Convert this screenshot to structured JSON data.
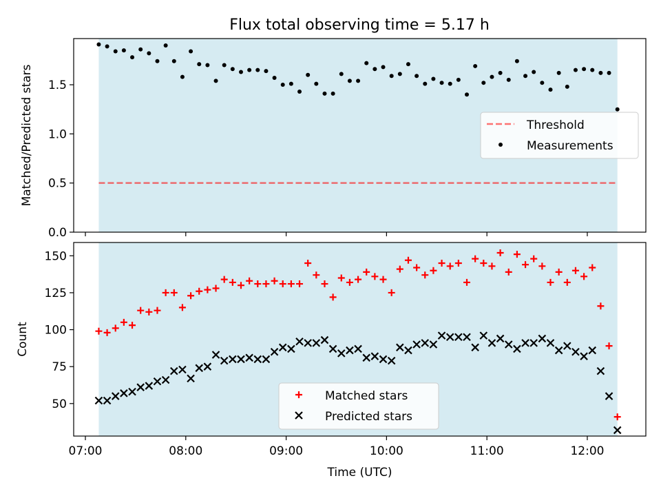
{
  "title": "Flux total observing time = 5.17 h",
  "colors": {
    "observing_band": "#add8e6",
    "threshold": "#ff0000",
    "measurement": "#000000",
    "matched": "#ff0000",
    "predicted": "#000000"
  },
  "chart_data": [
    {
      "type": "scatter",
      "panel": "top",
      "ylabel": "Matched/Predicted stars",
      "xlim": [
        "06:53",
        "12:35"
      ],
      "ylim": [
        0,
        1.97
      ],
      "yticks": [
        "0.0",
        "0.5",
        "1.0",
        "1.5"
      ],
      "xticks": [
        "07:00",
        "08:00",
        "09:00",
        "10:00",
        "11:00",
        "12:00"
      ],
      "observing_band": [
        "07:08",
        "12:18"
      ],
      "threshold": {
        "name": "Threshold",
        "value": 0.5,
        "style": "dashed"
      },
      "legend": {
        "placement": "center-right",
        "entries": [
          "Threshold",
          "Measurements"
        ]
      },
      "series": [
        {
          "name": "Measurements",
          "marker": "dot",
          "x": [
            "07:08",
            "07:13",
            "07:18",
            "07:23",
            "07:28",
            "07:33",
            "07:38",
            "07:43",
            "07:48",
            "07:53",
            "07:58",
            "08:03",
            "08:08",
            "08:13",
            "08:18",
            "08:23",
            "08:28",
            "08:33",
            "08:38",
            "08:43",
            "08:48",
            "08:53",
            "08:58",
            "09:03",
            "09:08",
            "09:13",
            "09:18",
            "09:23",
            "09:28",
            "09:33",
            "09:38",
            "09:43",
            "09:48",
            "09:53",
            "09:58",
            "10:03",
            "10:08",
            "10:13",
            "10:18",
            "10:23",
            "10:28",
            "10:33",
            "10:38",
            "10:43",
            "10:48",
            "10:53",
            "10:58",
            "11:03",
            "11:08",
            "11:13",
            "11:18",
            "11:23",
            "11:28",
            "11:33",
            "11:38",
            "11:43",
            "11:48",
            "11:53",
            "11:58",
            "12:03",
            "12:08",
            "12:13",
            "12:18"
          ],
          "y": [
            1.91,
            1.89,
            1.84,
            1.85,
            1.78,
            1.86,
            1.82,
            1.74,
            1.9,
            1.74,
            1.58,
            1.84,
            1.71,
            1.7,
            1.54,
            1.7,
            1.66,
            1.63,
            1.65,
            1.65,
            1.64,
            1.57,
            1.5,
            1.51,
            1.43,
            1.6,
            1.51,
            1.41,
            1.41,
            1.61,
            1.54,
            1.54,
            1.72,
            1.66,
            1.68,
            1.59,
            1.61,
            1.71,
            1.59,
            1.51,
            1.56,
            1.52,
            1.51,
            1.55,
            1.4,
            1.69,
            1.52,
            1.58,
            1.62,
            1.55,
            1.74,
            1.59,
            1.63,
            1.52,
            1.45,
            1.62,
            1.48,
            1.65,
            1.66,
            1.65,
            1.62,
            1.62,
            1.25
          ]
        }
      ]
    },
    {
      "type": "scatter",
      "panel": "bottom",
      "xlabel": "Time (UTC)",
      "ylabel": "Count",
      "xlim": [
        "06:53",
        "12:35"
      ],
      "ylim": [
        28,
        159
      ],
      "yticks": [
        "50",
        "75",
        "100",
        "125",
        "150"
      ],
      "xticks": [
        "07:00",
        "08:00",
        "09:00",
        "10:00",
        "11:00",
        "12:00"
      ],
      "observing_band": [
        "07:08",
        "12:18"
      ],
      "legend": {
        "placement": "bottom-center",
        "entries": [
          "Matched stars",
          "Predicted stars"
        ]
      },
      "series": [
        {
          "name": "Matched stars",
          "marker": "plus",
          "x": [
            "07:08",
            "07:13",
            "07:18",
            "07:23",
            "07:28",
            "07:33",
            "07:38",
            "07:43",
            "07:48",
            "07:53",
            "07:58",
            "08:03",
            "08:08",
            "08:13",
            "08:18",
            "08:23",
            "08:28",
            "08:33",
            "08:38",
            "08:43",
            "08:48",
            "08:53",
            "08:58",
            "09:03",
            "09:08",
            "09:13",
            "09:18",
            "09:23",
            "09:28",
            "09:33",
            "09:38",
            "09:43",
            "09:48",
            "09:53",
            "09:58",
            "10:03",
            "10:08",
            "10:13",
            "10:18",
            "10:23",
            "10:28",
            "10:33",
            "10:38",
            "10:43",
            "10:48",
            "10:53",
            "10:58",
            "11:03",
            "11:08",
            "11:13",
            "11:18",
            "11:23",
            "11:28",
            "11:33",
            "11:38",
            "11:43",
            "11:48",
            "11:53",
            "11:58",
            "12:03",
            "12:08",
            "12:13",
            "12:18"
          ],
          "y": [
            99,
            98,
            101,
            105,
            103,
            113,
            112,
            113,
            125,
            125,
            115,
            123,
            126,
            127,
            128,
            134,
            132,
            130,
            133,
            131,
            131,
            133,
            131,
            131,
            131,
            145,
            137,
            131,
            122,
            135,
            132,
            134,
            139,
            136,
            134,
            125,
            141,
            147,
            142,
            137,
            140,
            145,
            143,
            145,
            132,
            148,
            145,
            143,
            152,
            139,
            151,
            144,
            148,
            143,
            132,
            139,
            132,
            140,
            136,
            142,
            116,
            89,
            41
          ]
        },
        {
          "name": "Predicted stars",
          "marker": "x",
          "x": [
            "07:08",
            "07:13",
            "07:18",
            "07:23",
            "07:28",
            "07:33",
            "07:38",
            "07:43",
            "07:48",
            "07:53",
            "07:58",
            "08:03",
            "08:08",
            "08:13",
            "08:18",
            "08:23",
            "08:28",
            "08:33",
            "08:38",
            "08:43",
            "08:48",
            "08:53",
            "08:58",
            "09:03",
            "09:08",
            "09:13",
            "09:18",
            "09:23",
            "09:28",
            "09:33",
            "09:38",
            "09:43",
            "09:48",
            "09:53",
            "09:58",
            "10:03",
            "10:08",
            "10:13",
            "10:18",
            "10:23",
            "10:28",
            "10:33",
            "10:38",
            "10:43",
            "10:48",
            "10:53",
            "10:58",
            "11:03",
            "11:08",
            "11:13",
            "11:18",
            "11:23",
            "11:28",
            "11:33",
            "11:38",
            "11:43",
            "11:48",
            "11:53",
            "11:58",
            "12:03",
            "12:08",
            "12:13",
            "12:18"
          ],
          "y": [
            52,
            52,
            55,
            57,
            58,
            61,
            62,
            65,
            66,
            72,
            73,
            67,
            74,
            75,
            83,
            79,
            80,
            80,
            81,
            80,
            80,
            85,
            88,
            87,
            92,
            91,
            91,
            93,
            87,
            84,
            86,
            87,
            81,
            82,
            80,
            79,
            88,
            86,
            90,
            91,
            90,
            96,
            95,
            95,
            95,
            88,
            96,
            91,
            94,
            90,
            87,
            91,
            91,
            94,
            91,
            86,
            89,
            85,
            82,
            86,
            72,
            55,
            32
          ]
        }
      ]
    }
  ]
}
